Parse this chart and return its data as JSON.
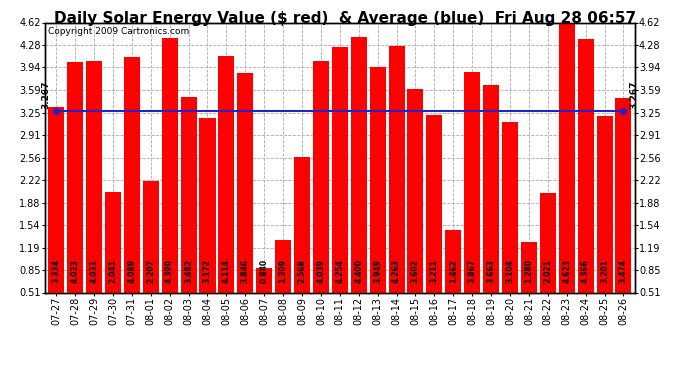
{
  "title": "Daily Solar Energy Value ($ red)  & Average (blue)  Fri Aug 28 06:57",
  "copyright": "Copyright 2009 Cartronics.com",
  "categories": [
    "07-27",
    "07-28",
    "07-29",
    "07-30",
    "07-31",
    "08-01",
    "08-02",
    "08-03",
    "08-04",
    "08-05",
    "08-06",
    "08-07",
    "08-08",
    "08-09",
    "08-10",
    "08-11",
    "08-12",
    "08-13",
    "08-14",
    "08-15",
    "08-16",
    "08-17",
    "08-18",
    "08-19",
    "08-20",
    "08-21",
    "08-22",
    "08-23",
    "08-24",
    "08-25",
    "08-26"
  ],
  "values": [
    3.334,
    4.023,
    4.031,
    2.041,
    4.089,
    2.207,
    4.39,
    3.482,
    3.172,
    4.114,
    3.846,
    0.88,
    1.309,
    2.568,
    4.039,
    4.254,
    4.4,
    3.949,
    4.263,
    3.602,
    3.211,
    1.462,
    3.867,
    3.663,
    3.104,
    1.28,
    2.021,
    4.623,
    4.366,
    3.201,
    3.474
  ],
  "average": 3.267,
  "bar_color": "#ff0000",
  "avg_line_color": "#2222cc",
  "background_color": "#ffffff",
  "plot_bg_color": "#ffffff",
  "grid_color": "#aaaaaa",
  "ylim_min": 0.51,
  "ylim_max": 4.62,
  "yticks": [
    0.51,
    0.85,
    1.19,
    1.54,
    1.88,
    2.22,
    2.56,
    2.91,
    3.25,
    3.59,
    3.94,
    4.28,
    4.62
  ],
  "title_fontsize": 11,
  "copyright_fontsize": 6.5,
  "bar_label_fontsize": 5.5,
  "tick_fontsize": 7,
  "avg_label": "3.267"
}
